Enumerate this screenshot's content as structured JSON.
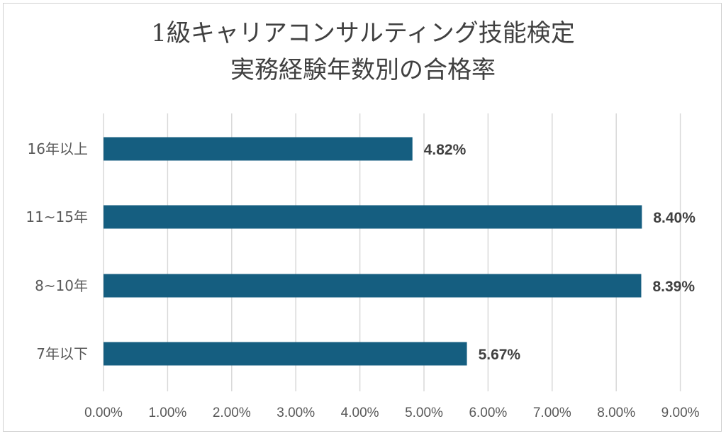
{
  "colors": {
    "bar": "#155e80",
    "grid": "#d9d9d9",
    "text": "#595959"
  },
  "chart_data": {
    "type": "bar",
    "orientation": "horizontal",
    "title_lines": [
      "1級キャリアコンサルティング技能検定",
      "実務経験年数別の合格率"
    ],
    "categories": [
      "16年以上",
      "11~15年",
      "8~10年",
      "7年以下"
    ],
    "values": [
      4.82,
      8.4,
      8.39,
      5.67
    ],
    "data_labels": [
      "4.82%",
      "8.40%",
      "8.39%",
      "5.67%"
    ],
    "x_ticks": [
      "0.00%",
      "1.00%",
      "2.00%",
      "3.00%",
      "4.00%",
      "5.00%",
      "6.00%",
      "7.00%",
      "8.00%",
      "9.00%"
    ],
    "xlim": [
      0,
      9
    ],
    "grid": true,
    "legend": "none"
  }
}
